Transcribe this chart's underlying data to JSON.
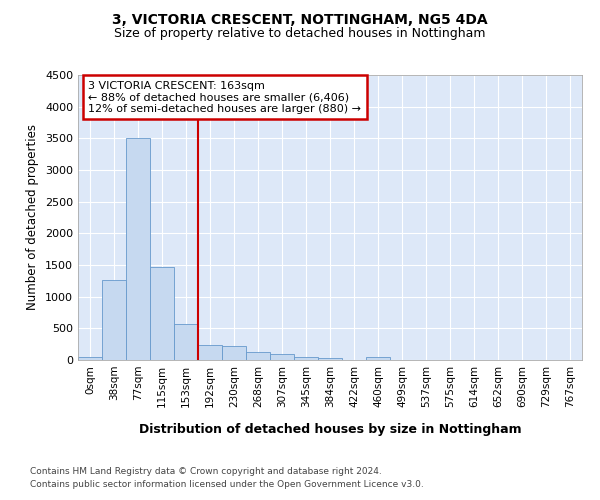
{
  "title1": "3, VICTORIA CRESCENT, NOTTINGHAM, NG5 4DA",
  "title2": "Size of property relative to detached houses in Nottingham",
  "xlabel": "Distribution of detached houses by size in Nottingham",
  "ylabel": "Number of detached properties",
  "bin_labels": [
    "0sqm",
    "38sqm",
    "77sqm",
    "115sqm",
    "153sqm",
    "192sqm",
    "230sqm",
    "268sqm",
    "307sqm",
    "345sqm",
    "384sqm",
    "422sqm",
    "460sqm",
    "499sqm",
    "537sqm",
    "575sqm",
    "614sqm",
    "652sqm",
    "690sqm",
    "729sqm",
    "767sqm"
  ],
  "bar_values": [
    40,
    1270,
    3500,
    1470,
    570,
    240,
    220,
    130,
    90,
    50,
    30,
    0,
    40,
    0,
    0,
    0,
    0,
    0,
    0,
    0,
    0
  ],
  "bar_color": "#c6d9f0",
  "bar_edge_color": "#6699cc",
  "vline_x": 4.5,
  "vline_color": "#cc0000",
  "annotation_text": "3 VICTORIA CRESCENT: 163sqm\n← 88% of detached houses are smaller (6,406)\n12% of semi-detached houses are larger (880) →",
  "annotation_box_color": "#ffffff",
  "annotation_border_color": "#cc0000",
  "ylim": [
    0,
    4500
  ],
  "yticks": [
    0,
    500,
    1000,
    1500,
    2000,
    2500,
    3000,
    3500,
    4000,
    4500
  ],
  "footer1": "Contains HM Land Registry data © Crown copyright and database right 2024.",
  "footer2": "Contains public sector information licensed under the Open Government Licence v3.0.",
  "fig_bg_color": "#ffffff",
  "plot_bg_color": "#dde8f8"
}
